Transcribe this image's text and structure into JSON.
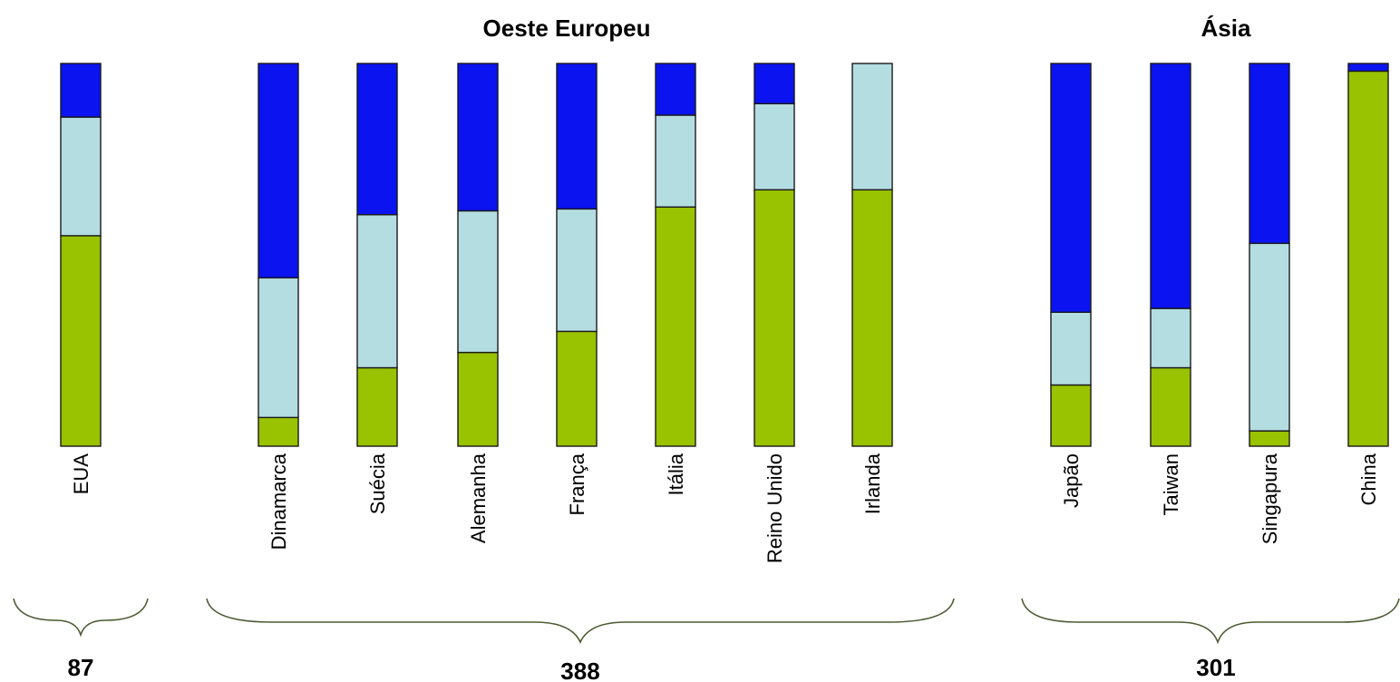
{
  "chart_data": {
    "type": "bar",
    "stacked": true,
    "normalized": true,
    "colors": [
      "#99c200",
      "#b4dde2",
      "#0a13f0"
    ],
    "groups": [
      {
        "title": "",
        "total": "87",
        "categories": [
          "EUA"
        ]
      },
      {
        "title": "Oeste Europeu",
        "total": "388",
        "categories": [
          "Dinamarca",
          "Suécia",
          "Alemanha",
          "França",
          "Itália",
          "Reino Unido",
          "Irlanda"
        ]
      },
      {
        "title": "Ásia",
        "total": "301",
        "categories": [
          "Japão",
          "Taiwan",
          "Singapura",
          "China"
        ]
      }
    ],
    "categories": [
      "EUA",
      "Dinamarca",
      "Suécia",
      "Alemanha",
      "França",
      "Itália",
      "Reino Unido",
      "Irlanda",
      "Japão",
      "Taiwan",
      "Singapura",
      "China"
    ],
    "series": [
      {
        "values": [
          55,
          7.5,
          20.5,
          24.5,
          30,
          62.5,
          67,
          67,
          16,
          20.5,
          4,
          98
        ]
      },
      {
        "values": [
          31,
          36.5,
          40,
          37,
          32,
          24,
          22.5,
          33,
          19,
          15.5,
          49,
          0
        ]
      },
      {
        "values": [
          14,
          56,
          39.5,
          38.5,
          38,
          13.5,
          10.5,
          0,
          65,
          64,
          47,
          2
        ]
      }
    ],
    "ylim": [
      0,
      100
    ]
  }
}
